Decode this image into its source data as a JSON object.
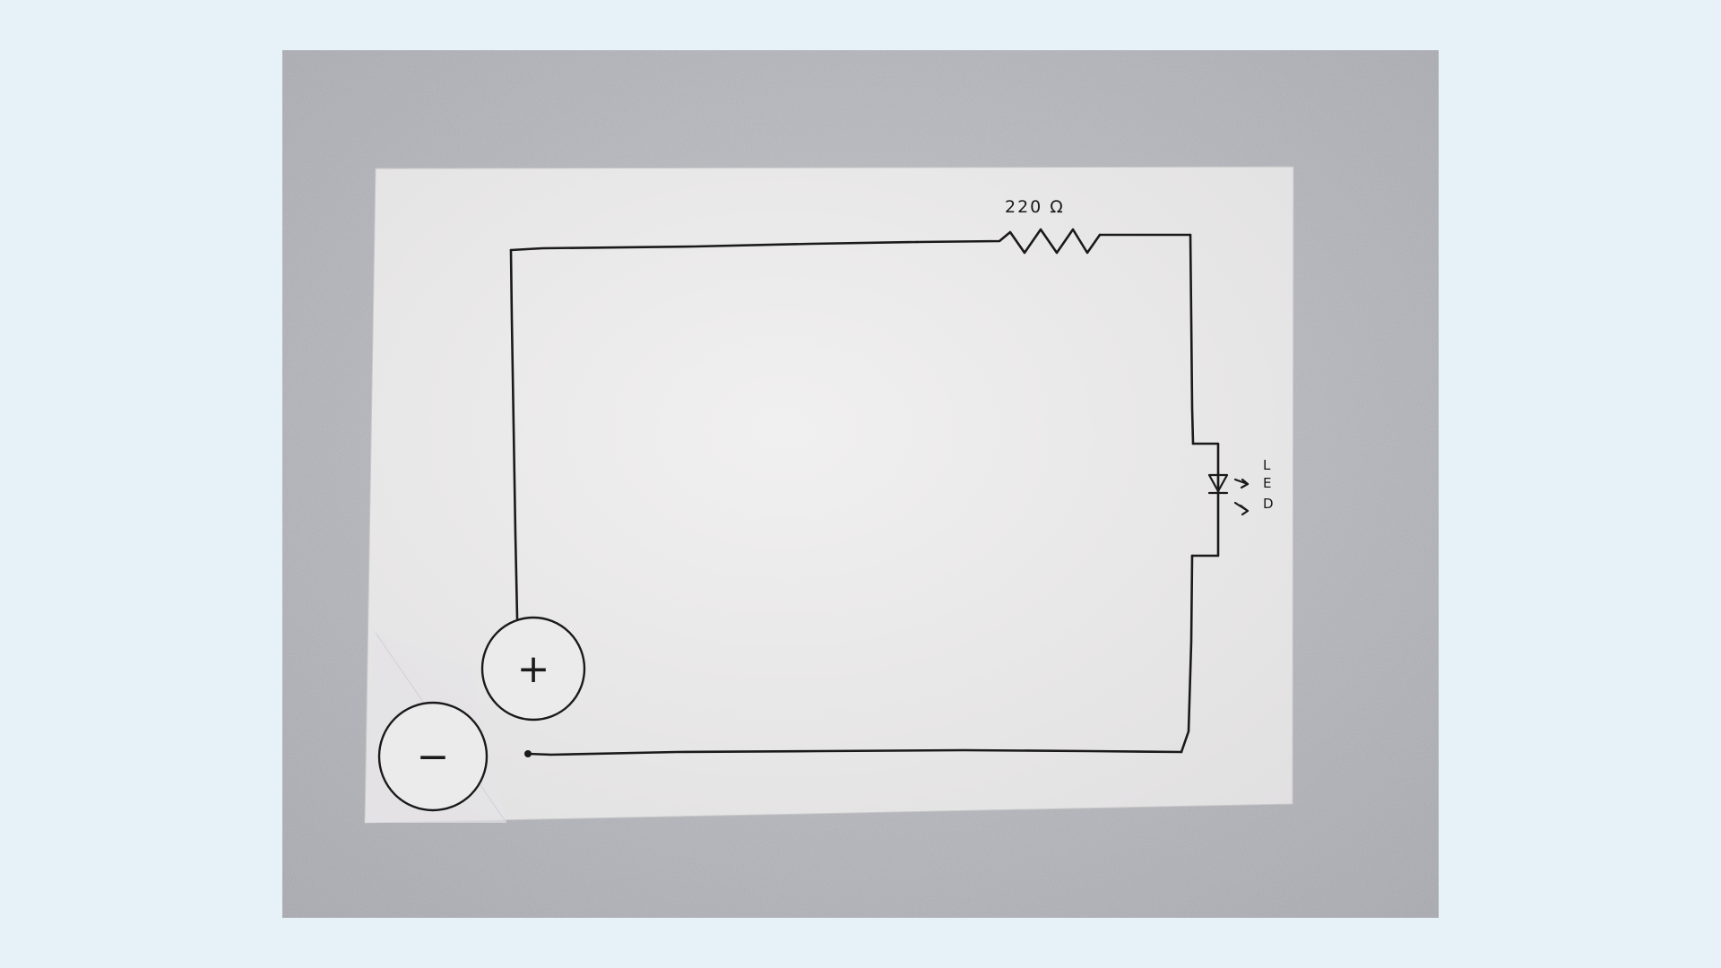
{
  "circuit": {
    "resistor_label": "220 Ω",
    "led_label_letters": [
      "L",
      "E",
      "D"
    ],
    "positive_terminal": "+",
    "negative_terminal": "−"
  },
  "colors": {
    "background": "#e6f1f8",
    "table_surface": "#b9bac0",
    "paper": "#ecebeb",
    "ink": "#1a1a1a"
  }
}
